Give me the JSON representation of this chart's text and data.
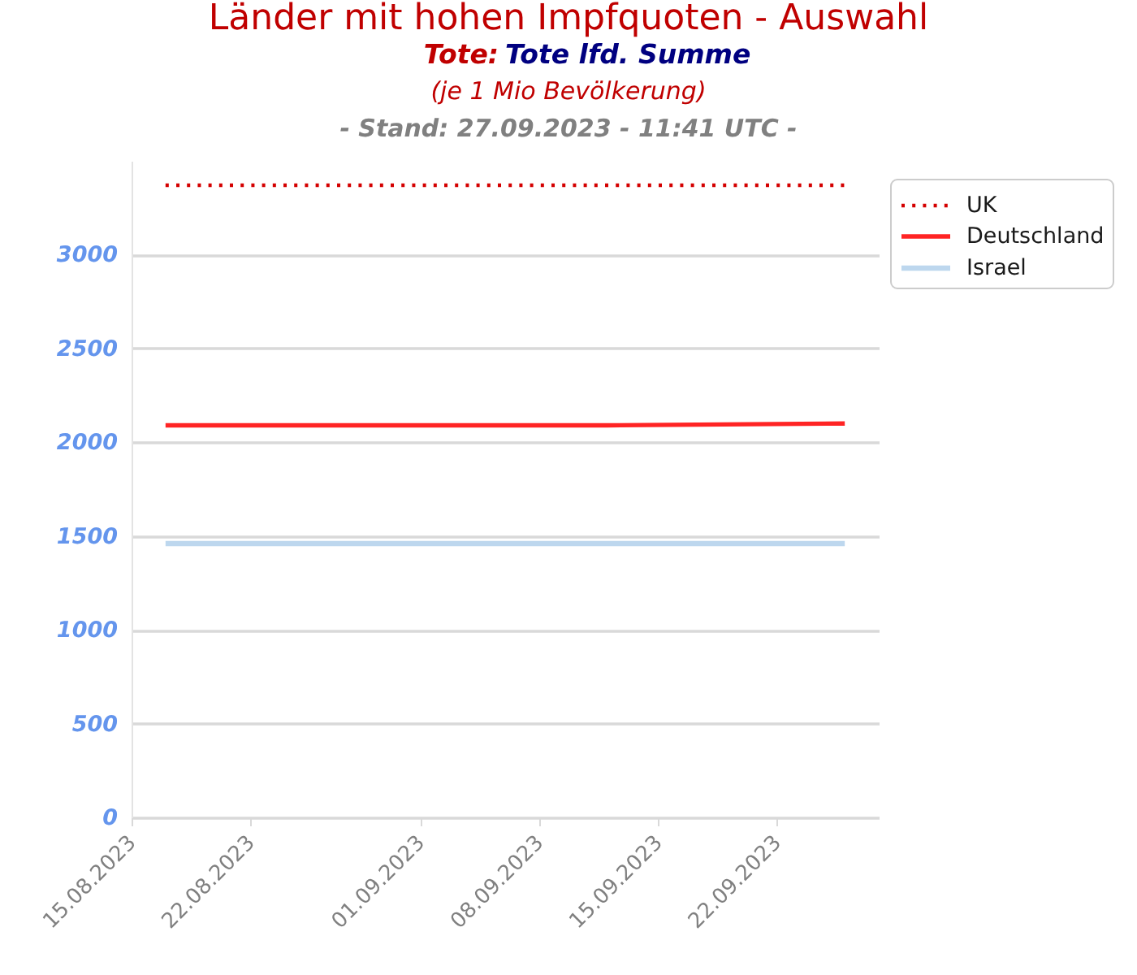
{
  "chart_data": {
    "type": "line",
    "title": "Länder mit hohen Impfquoten - Auswahl",
    "subtitle": "Tote: Tote lfd. Summe",
    "annotations": [
      "(je 1 Mio Bevölkerung)",
      "- Stand: 27.09.2023 - 11:41 UTC -"
    ],
    "x": [
      "2023-08-17",
      "2023-09-01",
      "2023-09-12",
      "2023-09-26"
    ],
    "series": [
      {
        "name": "UK",
        "color": "#d40000",
        "values": [
          3370,
          3370,
          3370,
          3370
        ],
        "line_style": "dotted"
      },
      {
        "name": "Deutschland",
        "color": "#ff2424",
        "values": [
          2090,
          2090,
          2090,
          2100
        ],
        "line_style": "solid"
      },
      {
        "name": "Israel",
        "color": "#bdd7ee",
        "values": [
          1460,
          1460,
          1460,
          1460
        ],
        "line_style": "solid"
      }
    ],
    "xlim": [
      "2023-08-15",
      "2023-09-28"
    ],
    "xticks": [
      {
        "value": "2023-08-15",
        "label": "15.08.2023"
      },
      {
        "value": "2023-08-22",
        "label": "22.08.2023"
      },
      {
        "value": "2023-09-01",
        "label": "01.09.2023"
      },
      {
        "value": "2023-09-08",
        "label": "08.09.2023"
      },
      {
        "value": "2023-09-15",
        "label": "15.09.2023"
      },
      {
        "value": "2023-09-22",
        "label": "22.09.2023"
      }
    ],
    "ylim": [
      0,
      3500
    ],
    "yticks": [
      0,
      500,
      1000,
      1500,
      2000,
      2500,
      3000
    ],
    "grid": "y",
    "legend": "top right"
  }
}
